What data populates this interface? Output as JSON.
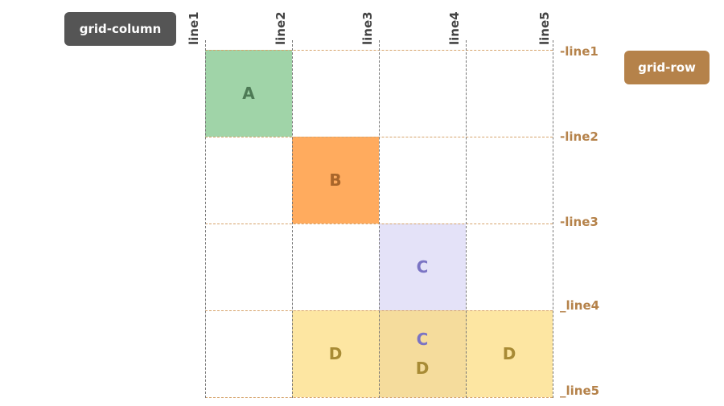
{
  "labels": {
    "grid_column": "grid-column",
    "grid_row": "grid-row"
  },
  "column_lines": [
    "line1",
    "line2",
    "line3",
    "line4",
    "line5"
  ],
  "row_lines": [
    "-line1",
    "-line2",
    "-line3",
    "_line4",
    "_line5"
  ],
  "items": {
    "a": "A",
    "b": "B",
    "c": "C",
    "c2": "C",
    "d1": "D",
    "d2": "D",
    "d3": "D"
  },
  "colors": {
    "a": "#a0d4a8",
    "b": "#ffab5e",
    "c": "#e4e2f8",
    "d": "#fde6a2",
    "cd": "#f5dc9c"
  }
}
